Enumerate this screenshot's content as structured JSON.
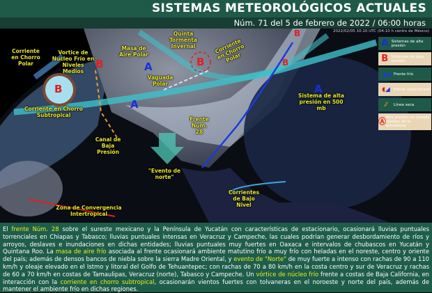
{
  "header": {
    "title": "SISTEMAS METEOROLÓGICOS ACTUALES",
    "subtitle": "Núm. 71 del 5 de febrero de 2022 / 06:00 horas"
  },
  "map": {
    "timestamp": "2022/02/05 10:10 UTC (04:10 h centro de México)",
    "labels": {
      "chorro_polar_w": "Corriente en Chorro Polar",
      "vortice": "Vortice de Nucleo Frío en Niveles Medios",
      "masa_aire": "Masa de Aire Polar",
      "quinta_tormenta": "Quinta Tormenta Invernal",
      "chorro_polar_e": "Corriente en Chorro Polar",
      "vaguada": "Vaguada Polar",
      "chorro_subtropical": "Corriente en Chorro Subtropical",
      "frente": "Frente Núm. 28",
      "sistema_alta": "Sistema de alta presión en 500 mb",
      "canal": "Canal de Baja Presión",
      "evento_norte": "\"Evento de norte\"",
      "zci": "Zona de Convergencia Intertropical",
      "corrientes_bajo": "Corrientes de Bajo Nivel"
    },
    "symbols": {
      "high": "A",
      "low": "B"
    },
    "legend": [
      {
        "icon": "A",
        "label": "Sistemas de alta presión"
      },
      {
        "icon": "B",
        "label": "Sistemas de baja presión"
      },
      {
        "icon": "cold-front",
        "label": "Frente frío"
      },
      {
        "icon": "stationary-front",
        "label": "Frente estacionario"
      },
      {
        "icon": "dry-line",
        "label": "Línea seca"
      },
      {
        "icon": "A",
        "label": "Alta presión en niveles medios de la atmósfera"
      }
    ],
    "colors": {
      "high": "#1530d8",
      "low": "#e02020",
      "label": "#e8e42a",
      "jet": "#3fc1c9"
    }
  },
  "bulletin": [
    {
      "t": "El ",
      "hl": false
    },
    {
      "t": "frente Núm. 28",
      "hl": true
    },
    {
      "t": " sobre el sureste mexicano y la Península de Yucatán con características de estacionario, ocasionará lluvias puntuales torrenciales en Chiapas y Tabasco; lluvias puntuales intensas en Veracruz y Campeche, las cuales podrían generar desbordamiento de ríos y arroyos, deslaves e inundaciones en dichas entidades; lluvias puntuales muy fuertes en Oaxaca e intervalos de chubascos en Yucatán y Quintana Roo. La ",
      "hl": false
    },
    {
      "t": "masa de aire frío",
      "hl": true
    },
    {
      "t": " asociada al frente ocasionará ambiente matutino frío a muy frío con heladas en el noreste, centro y oriente del país; además de densos bancos de niebla sobre la sierra Madre Oriental, y ",
      "hl": false
    },
    {
      "t": "evento de \"Norte\"",
      "hl": true
    },
    {
      "t": " de muy fuerte a intenso con rachas de 90 a 110 km/h y oleaje elevado en el Istmo y litoral del Golfo de Tehuantepec; con rachas de 70 a 80 km/h en la costa centro y sur de Veracruz y rachas de 60 a 70 km/h en costas de Tamaulipas, Veracruz (norte), Tabasco y Campeche. Un ",
      "hl": false
    },
    {
      "t": "vórtice de núcleo frío",
      "hl": true
    },
    {
      "t": " frente a costas de Baja California, en interacción con la ",
      "hl": false
    },
    {
      "t": "corriente en chorro subtropical",
      "hl": true
    },
    {
      "t": ", ocasionarán vientos fuertes con tolvaneras en el noroeste y norte del país, además de mantener el ambiente frío en dichas regiones.",
      "hl": false
    }
  ]
}
